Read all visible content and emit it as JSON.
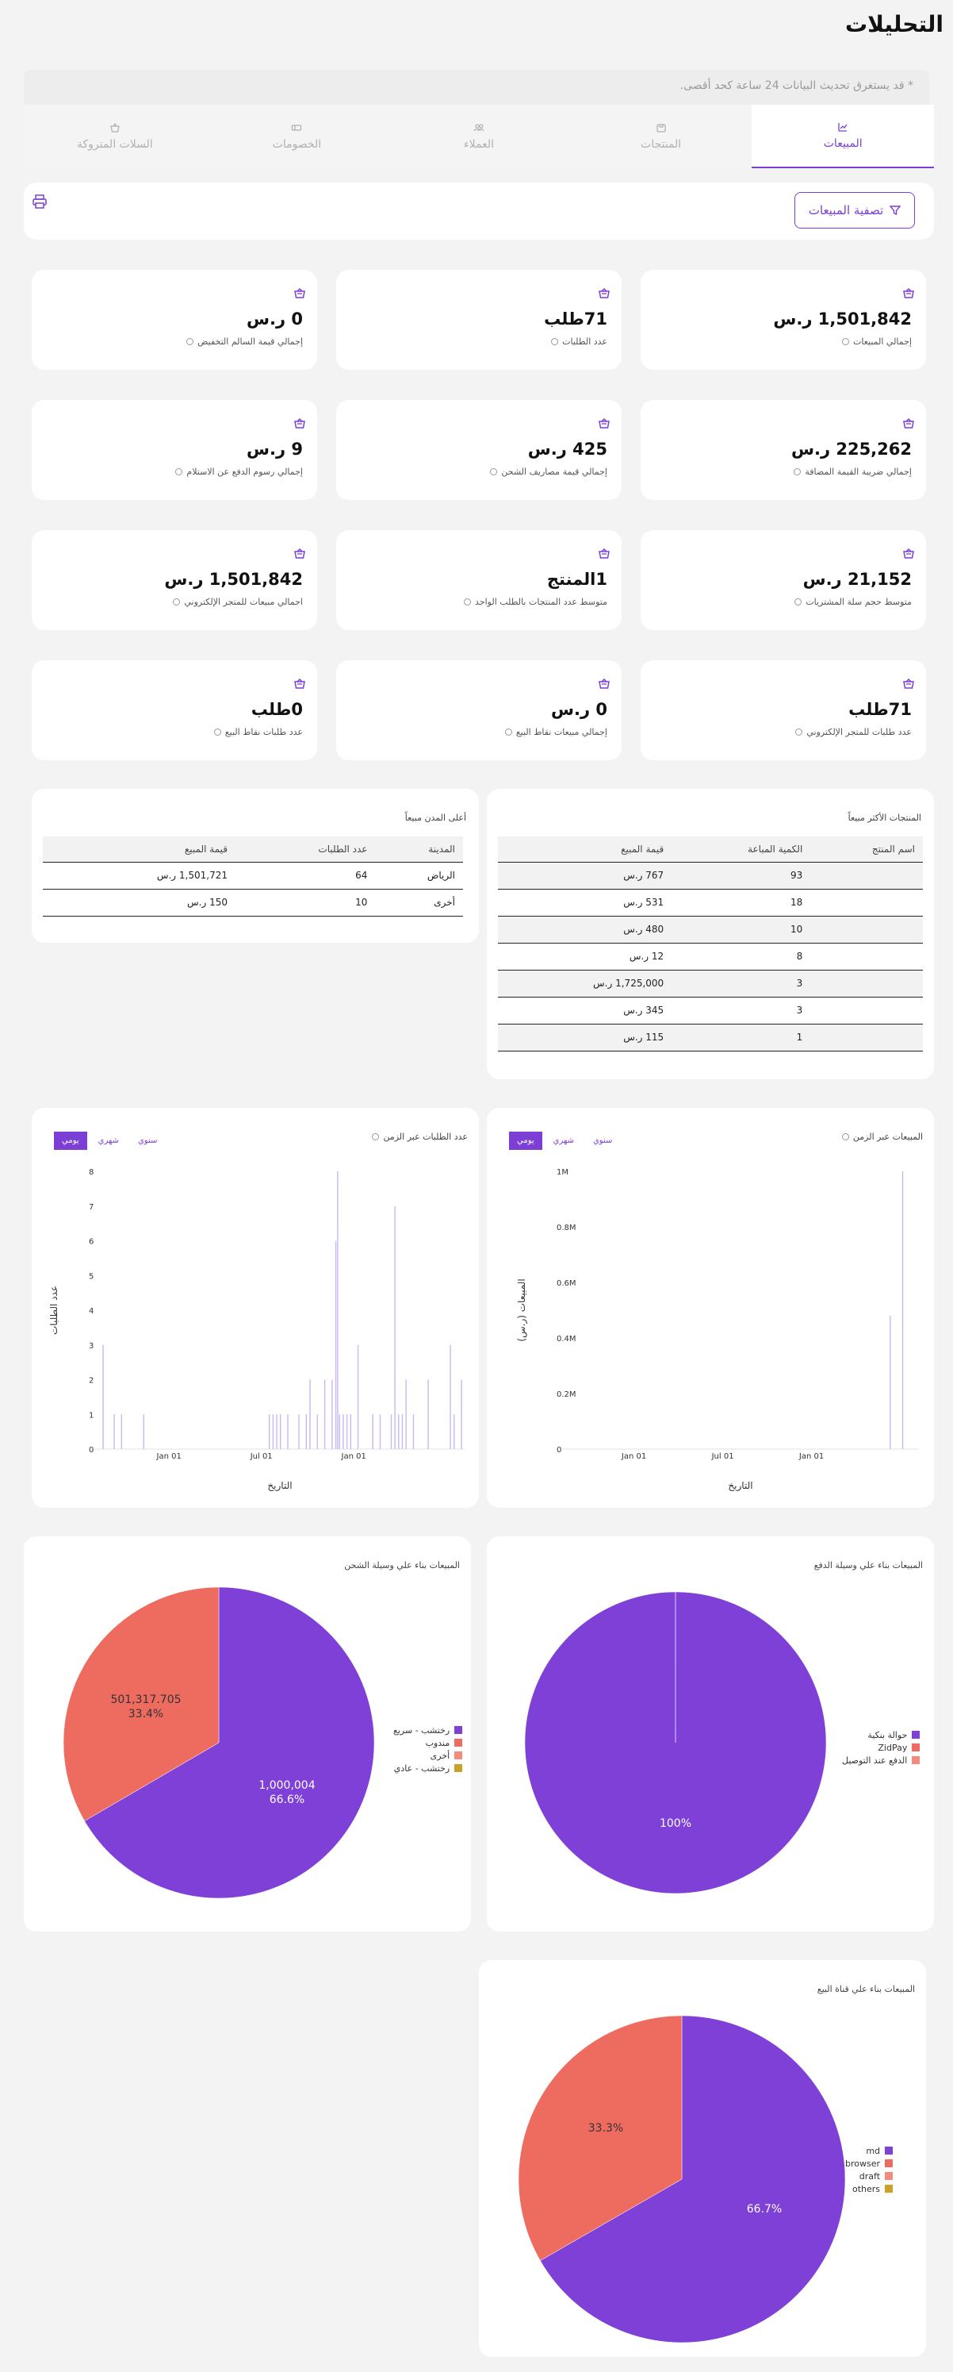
{
  "title": "التحليلات",
  "notice": "* قد يستغرق تحديث البيانات 24 ساعة كحد أقصى.",
  "tabs": [
    {
      "label": "المبيعات",
      "icon": "chart-line-icon"
    },
    {
      "label": "المنتجات",
      "icon": "box-icon"
    },
    {
      "label": "العملاء",
      "icon": "users-icon"
    },
    {
      "label": "الخصومات",
      "icon": "ticket-icon"
    },
    {
      "label": "السلات المتروكة",
      "icon": "basket-icon"
    }
  ],
  "filter_label": "تصفية المبيعات",
  "stats": [
    {
      "value": "1,501,842 ر.س",
      "label": "إجمالي المبيعات"
    },
    {
      "value": "71طلب",
      "label": "عدد الطلبات"
    },
    {
      "value": "0 ر.س",
      "label": "إجمالي قيمة السالم التخفيض"
    },
    {
      "value": "225,262 ر.س",
      "label": "إجمالي ضريبة القيمة المضافة"
    },
    {
      "value": "425 ر.س",
      "label": "إجمالي قيمة مصاريف الشحن"
    },
    {
      "value": "9 ر.س",
      "label": "إجمالي رسوم الدفع عن الاستلام"
    },
    {
      "value": "21,152 ر.س",
      "label": "متوسط حجم سلة المشتريات"
    },
    {
      "value": "1المنتج",
      "label": "متوسط عدد المنتجات بالطلب الواحد"
    },
    {
      "value": "1,501,842 ر.س",
      "label": "اجمالي مبيعات للمتجر الإلكتروني"
    },
    {
      "value": "71طلب",
      "label": "عدد طلبات للمتجر الإلكتروني"
    },
    {
      "value": "0 ر.س",
      "label": "إجمالي مبيعات نقاط البيع"
    },
    {
      "value": "0طلب",
      "label": "عدد طلبات نقاط البيع"
    }
  ],
  "top_products": {
    "title": "المنتجات الأكثر مبيعاً",
    "headers": [
      "اسم المنتج",
      "الكمية المباعة",
      "قيمة المبيع"
    ],
    "rows": [
      [
        "",
        "93",
        "767 ر.س"
      ],
      [
        "",
        "18",
        "531 ر.س"
      ],
      [
        "",
        "10",
        "480 ر.س"
      ],
      [
        "",
        "8",
        "12 ر.س"
      ],
      [
        "",
        "3",
        "1,725,000 ر.س"
      ],
      [
        "",
        "3",
        "345 ر.س"
      ],
      [
        "",
        "1",
        "115 ر.س"
      ]
    ]
  },
  "top_cities": {
    "title": "أعلى المدن مبيعاً",
    "headers": [
      "المدينة",
      "عدد الطلبات",
      "قيمة المبيع"
    ],
    "rows": [
      [
        "الرياض",
        "64",
        "1,501,721 ر.س"
      ],
      [
        "أخرى",
        "10",
        "150 ر.س"
      ]
    ]
  },
  "segments": [
    "يومي",
    "شهري",
    "سنوي"
  ],
  "chart_data": [
    {
      "type": "bar",
      "title": "المبيعات عبر الزمن",
      "xlabel": "التاريخ",
      "ylabel": "المبيعات (ر.س)",
      "ylim": [
        0,
        1000000
      ],
      "yticks": [
        "0",
        "0.2M",
        "0.4M",
        "0.6M",
        "0.8M",
        "1M"
      ],
      "xticks": [
        "Jan 01",
        "Jul 01",
        "Jan 01"
      ],
      "x": [
        0.92,
        0.955
      ],
      "values": [
        480000,
        1000000
      ]
    },
    {
      "type": "bar",
      "title": "عدد الطلبات عبر الزمن",
      "xlabel": "التاريخ",
      "ylabel": "عدد الطلبات",
      "ylim": [
        0,
        8
      ],
      "yticks": [
        "0",
        "1",
        "2",
        "3",
        "4",
        "5",
        "6",
        "7",
        "8"
      ],
      "xticks": [
        "Jan 01",
        "Jul 01",
        "Jan 01"
      ],
      "x": [
        0.02,
        0.05,
        0.07,
        0.13,
        0.47,
        0.48,
        0.49,
        0.5,
        0.52,
        0.55,
        0.57,
        0.58,
        0.6,
        0.62,
        0.64,
        0.65,
        0.655,
        0.66,
        0.67,
        0.68,
        0.69,
        0.71,
        0.75,
        0.77,
        0.8,
        0.81,
        0.82,
        0.83,
        0.84,
        0.86,
        0.9,
        0.96,
        0.97,
        0.99
      ],
      "values": [
        3,
        1,
        1,
        1,
        1,
        1,
        1,
        1,
        1,
        1,
        1,
        2,
        1,
        2,
        2,
        6,
        8,
        1,
        1,
        1,
        1,
        3,
        1,
        1,
        1,
        7,
        1,
        1,
        2,
        1,
        2,
        3,
        1,
        2
      ]
    },
    {
      "type": "pie",
      "title": "المبيعات بناء علي وسيلة الدفع",
      "labels": [
        "حوالة بنكية",
        "ZidPay",
        "الدفع عند التوصيل"
      ],
      "values": [
        100,
        0.001,
        0
      ],
      "slice_labels": [
        "100%",
        "",
        ""
      ],
      "colors": [
        "#7e40d6",
        "#ee6b60",
        "#f28b7d"
      ]
    },
    {
      "type": "pie",
      "title": "المبيعات بناء علي وسيلة الشحن",
      "labels": [
        "رختشب - سريع",
        "مندوب",
        "أخرى",
        "رختشب - عادي"
      ],
      "values": [
        1000004,
        501317.705,
        0,
        0
      ],
      "slice_labels": [
        "1,000,004\n66.6%",
        "501,317.705\n33.4%",
        "",
        ""
      ],
      "colors": [
        "#7e40d6",
        "#ee6b60",
        "#f28b7d",
        "#c9a227"
      ]
    },
    {
      "type": "pie",
      "title": "المبيعات بناء علي قناة البيع",
      "labels": [
        "md",
        "browser",
        "draft",
        "others"
      ],
      "values": [
        66.7,
        33.3,
        0,
        0
      ],
      "slice_labels": [
        "66.7%",
        "33.3%",
        "",
        ""
      ],
      "colors": [
        "#7e40d6",
        "#ee6b60",
        "#f28b7d",
        "#c9a227"
      ]
    }
  ]
}
